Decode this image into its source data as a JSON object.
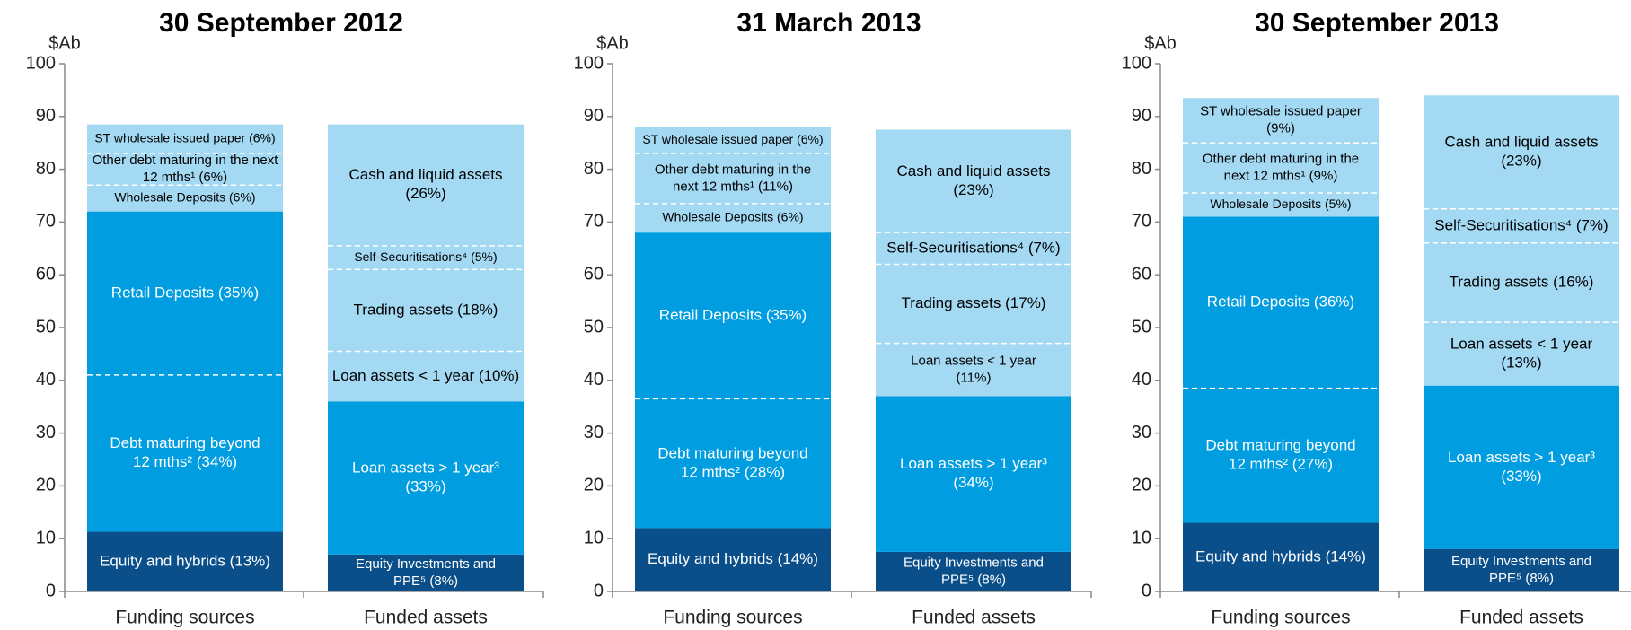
{
  "chart_data": [
    {
      "type": "stacked-bar",
      "title": "30 September 2012",
      "ylabel": "$Ab",
      "ylim": [
        0,
        100
      ],
      "yticks": [
        0,
        10,
        20,
        30,
        40,
        50,
        60,
        70,
        80,
        90,
        100
      ],
      "bars": [
        {
          "category": "Funding sources",
          "segments": [
            {
              "label": [
                "Equity and hybrids (13%)"
              ],
              "value": 11.3,
              "color": "#0b4f8a"
            },
            {
              "label": [
                "Debt maturing beyond",
                "12 mths² (34%)"
              ],
              "value": 29.7,
              "color": "#009de0"
            },
            {
              "label": [
                "Retail Deposits (35%)"
              ],
              "value": 31,
              "color": "#009de0"
            },
            {
              "label": [
                "Wholesale Deposits (6%)"
              ],
              "value": 5,
              "color": "#a3d9f2"
            },
            {
              "label": [
                "Other debt maturing in the next",
                "12 mths¹ (6%)"
              ],
              "value": 6,
              "color": "#a3d9f2"
            },
            {
              "label": [
                "ST wholesale issued paper (6%)"
              ],
              "value": 5.5,
              "color": "#a3d9f2"
            }
          ]
        },
        {
          "category": "Funded assets",
          "segments": [
            {
              "label": [
                "Equity Investments and",
                "PPE⁵ (8%)"
              ],
              "value": 7,
              "color": "#0b4f8a"
            },
            {
              "label": [
                "Loan assets > 1 year³",
                "(33%)"
              ],
              "value": 29,
              "color": "#009de0"
            },
            {
              "label": [
                "Loan assets < 1 year (10%)"
              ],
              "value": 9.5,
              "color": "#a3d9f2"
            },
            {
              "label": [
                "Trading assets (18%)"
              ],
              "value": 15.5,
              "color": "#a3d9f2"
            },
            {
              "label": [
                "Self-Securitisations⁴ (5%)"
              ],
              "value": 4.5,
              "color": "#a3d9f2"
            },
            {
              "label": [
                "Cash and liquid assets",
                "(26%)"
              ],
              "value": 23,
              "color": "#a3d9f2"
            }
          ]
        }
      ]
    },
    {
      "type": "stacked-bar",
      "title": "31 March 2013",
      "ylabel": "$Ab",
      "ylim": [
        0,
        100
      ],
      "yticks": [
        0,
        10,
        20,
        30,
        40,
        50,
        60,
        70,
        80,
        90,
        100
      ],
      "bars": [
        {
          "category": "Funding sources",
          "segments": [
            {
              "label": [
                "Equity and hybrids (14%)"
              ],
              "value": 12,
              "color": "#0b4f8a"
            },
            {
              "label": [
                "Debt maturing beyond",
                "12 mths² (28%)"
              ],
              "value": 24.5,
              "color": "#009de0"
            },
            {
              "label": [
                "Retail Deposits (35%)"
              ],
              "value": 31.5,
              "color": "#009de0"
            },
            {
              "label": [
                "Wholesale Deposits (6%)"
              ],
              "value": 5.5,
              "color": "#a3d9f2"
            },
            {
              "label": [
                "Other debt maturing in the",
                "next 12 mths¹ (11%)"
              ],
              "value": 9.5,
              "color": "#a3d9f2"
            },
            {
              "label": [
                "ST wholesale issued paper (6%)"
              ],
              "value": 5,
              "color": "#a3d9f2"
            }
          ]
        },
        {
          "category": "Funded assets",
          "segments": [
            {
              "label": [
                "Equity Investments and",
                "PPE⁵ (8%)"
              ],
              "value": 7.5,
              "color": "#0b4f8a"
            },
            {
              "label": [
                "Loan assets > 1 year³",
                "(34%)"
              ],
              "value": 29.5,
              "color": "#009de0"
            },
            {
              "label": [
                "Loan assets < 1 year",
                "(11%)"
              ],
              "value": 10,
              "color": "#a3d9f2"
            },
            {
              "label": [
                "Trading assets (17%)"
              ],
              "value": 15,
              "color": "#a3d9f2"
            },
            {
              "label": [
                "Self-Securitisations⁴ (7%)"
              ],
              "value": 6,
              "color": "#a3d9f2"
            },
            {
              "label": [
                "Cash and liquid assets",
                "(23%)"
              ],
              "value": 19.5,
              "color": "#a3d9f2"
            }
          ]
        }
      ]
    },
    {
      "type": "stacked-bar",
      "title": "30 September 2013",
      "ylabel": "$Ab",
      "ylim": [
        0,
        100
      ],
      "yticks": [
        0,
        10,
        20,
        30,
        40,
        50,
        60,
        70,
        80,
        90,
        100
      ],
      "bars": [
        {
          "category": "Funding sources",
          "segments": [
            {
              "label": [
                "Equity and hybrids (14%)"
              ],
              "value": 13,
              "color": "#0b4f8a"
            },
            {
              "label": [
                "Debt maturing beyond",
                "12 mths² (27%)"
              ],
              "value": 25.5,
              "color": "#009de0"
            },
            {
              "label": [
                "Retail Deposits (36%)"
              ],
              "value": 32.5,
              "color": "#009de0"
            },
            {
              "label": [
                "Wholesale Deposits (5%)"
              ],
              "value": 4.5,
              "color": "#a3d9f2"
            },
            {
              "label": [
                "Other debt maturing in the",
                "next 12 mths¹ (9%)"
              ],
              "value": 9.5,
              "color": "#a3d9f2"
            },
            {
              "label": [
                "ST wholesale issued paper",
                "(9%)"
              ],
              "value": 8.5,
              "color": "#a3d9f2"
            }
          ]
        },
        {
          "category": "Funded assets",
          "segments": [
            {
              "label": [
                "Equity Investments and",
                "PPE⁵ (8%)"
              ],
              "value": 8,
              "color": "#0b4f8a"
            },
            {
              "label": [
                "Loan assets > 1 year³",
                "(33%)"
              ],
              "value": 31,
              "color": "#009de0"
            },
            {
              "label": [
                "Loan assets < 1 year",
                "(13%)"
              ],
              "value": 12,
              "color": "#a3d9f2"
            },
            {
              "label": [
                "Trading assets (16%)"
              ],
              "value": 15,
              "color": "#a3d9f2"
            },
            {
              "label": [
                "Self-Securitisations⁴ (7%)"
              ],
              "value": 6.5,
              "color": "#a3d9f2"
            },
            {
              "label": [
                "Cash and liquid assets",
                "(23%)"
              ],
              "value": 21.5,
              "color": "#a3d9f2"
            }
          ]
        }
      ]
    }
  ]
}
